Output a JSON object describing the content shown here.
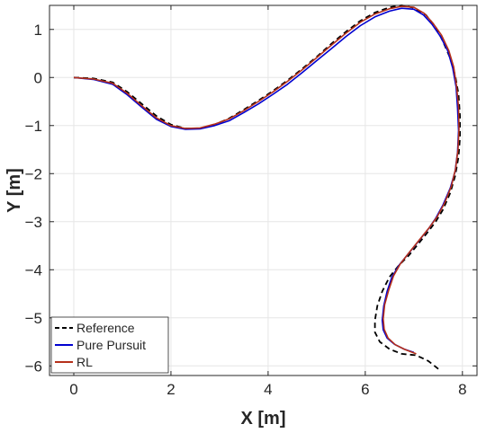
{
  "chart_data": {
    "type": "line",
    "xlabel": "X [m]",
    "ylabel": "Y [m]",
    "xlim": [
      -0.5,
      8.3
    ],
    "ylim": [
      -6.2,
      1.5
    ],
    "xticks": [
      0,
      2,
      4,
      6,
      8
    ],
    "yticks": [
      1,
      0,
      -1,
      -2,
      -3,
      -4,
      -5,
      -6
    ],
    "xtick_labels": [
      "0",
      "2",
      "4",
      "6",
      "8"
    ],
    "ytick_labels": [
      "1",
      "0",
      "−1",
      "−2",
      "−3",
      "−4",
      "−5",
      "−6"
    ],
    "grid": true,
    "legend_position": "bottom-left",
    "series": [
      {
        "name": "Reference",
        "color": "#000000",
        "style": "dashed",
        "x": [
          0,
          0.4,
          0.8,
          1.1,
          1.4,
          1.7,
          2.0,
          2.3,
          2.6,
          2.9,
          3.2,
          3.5,
          3.8,
          4.1,
          4.4,
          4.7,
          5.0,
          5.3,
          5.6,
          5.9,
          6.2,
          6.5,
          6.75,
          7.0,
          7.25,
          7.45,
          7.6,
          7.75,
          7.85,
          7.92,
          7.95,
          7.95,
          7.92,
          7.85,
          7.75,
          7.6,
          7.45,
          7.3,
          7.1,
          6.9,
          6.7,
          6.5,
          6.35,
          6.25,
          6.2,
          6.2,
          6.3,
          6.5,
          6.75,
          7.05,
          7.3,
          7.55
        ],
        "y": [
          0,
          -0.02,
          -0.1,
          -0.3,
          -0.55,
          -0.8,
          -0.98,
          -1.06,
          -1.06,
          -0.98,
          -0.85,
          -0.67,
          -0.48,
          -0.28,
          -0.06,
          0.18,
          0.43,
          0.7,
          0.95,
          1.18,
          1.35,
          1.46,
          1.5,
          1.45,
          1.3,
          1.05,
          0.75,
          0.4,
          0.05,
          -0.35,
          -0.8,
          -1.25,
          -1.65,
          -2.05,
          -2.4,
          -2.75,
          -3.0,
          -3.2,
          -3.45,
          -3.7,
          -3.9,
          -4.15,
          -4.45,
          -4.75,
          -5.05,
          -5.3,
          -5.5,
          -5.65,
          -5.75,
          -5.78,
          -5.9,
          -6.1
        ]
      },
      {
        "name": "Pure Pursuit",
        "color": "#0000d0",
        "style": "solid",
        "x": [
          0,
          0.4,
          0.8,
          1.1,
          1.4,
          1.7,
          2.0,
          2.3,
          2.6,
          2.9,
          3.2,
          3.5,
          3.8,
          4.1,
          4.4,
          4.7,
          5.0,
          5.3,
          5.6,
          5.9,
          6.2,
          6.5,
          6.75,
          7.0,
          7.2,
          7.38,
          7.55,
          7.7,
          7.8,
          7.87,
          7.9,
          7.92,
          7.9,
          7.85,
          7.75,
          7.6,
          7.45,
          7.3,
          7.1,
          6.9,
          6.7,
          6.55,
          6.45,
          6.38,
          6.35,
          6.37,
          6.45,
          6.6,
          6.8,
          7.0
        ],
        "y": [
          0,
          -0.04,
          -0.14,
          -0.36,
          -0.62,
          -0.87,
          -1.02,
          -1.08,
          -1.07,
          -1.0,
          -0.9,
          -0.73,
          -0.55,
          -0.35,
          -0.14,
          0.1,
          0.35,
          0.6,
          0.85,
          1.08,
          1.26,
          1.38,
          1.44,
          1.42,
          1.3,
          1.1,
          0.85,
          0.55,
          0.2,
          -0.2,
          -0.65,
          -1.1,
          -1.55,
          -1.95,
          -2.3,
          -2.65,
          -2.93,
          -3.15,
          -3.4,
          -3.65,
          -3.9,
          -4.15,
          -4.45,
          -4.75,
          -5.05,
          -5.25,
          -5.42,
          -5.55,
          -5.65,
          -5.72
        ]
      },
      {
        "name": "RL",
        "color": "#b5301a",
        "style": "solid",
        "x": [
          0,
          0.4,
          0.8,
          1.1,
          1.4,
          1.7,
          2.0,
          2.3,
          2.6,
          2.9,
          3.2,
          3.5,
          3.8,
          4.1,
          4.4,
          4.7,
          5.0,
          5.3,
          5.6,
          5.9,
          6.2,
          6.5,
          6.75,
          7.0,
          7.22,
          7.4,
          7.57,
          7.72,
          7.82,
          7.88,
          7.92,
          7.93,
          7.91,
          7.86,
          7.77,
          7.63,
          7.48,
          7.32,
          7.12,
          6.92,
          6.72,
          6.58,
          6.48,
          6.4,
          6.37,
          6.39,
          6.47,
          6.62,
          6.82,
          7.05
        ],
        "y": [
          0,
          -0.03,
          -0.12,
          -0.33,
          -0.59,
          -0.84,
          -1.0,
          -1.06,
          -1.05,
          -0.97,
          -0.86,
          -0.69,
          -0.5,
          -0.3,
          -0.08,
          0.16,
          0.41,
          0.67,
          0.92,
          1.15,
          1.32,
          1.43,
          1.48,
          1.46,
          1.33,
          1.12,
          0.88,
          0.56,
          0.22,
          -0.18,
          -0.62,
          -1.08,
          -1.5,
          -1.9,
          -2.27,
          -2.62,
          -2.9,
          -3.12,
          -3.37,
          -3.62,
          -3.88,
          -4.13,
          -4.43,
          -4.73,
          -5.02,
          -5.24,
          -5.42,
          -5.56,
          -5.66,
          -5.75
        ]
      }
    ]
  }
}
